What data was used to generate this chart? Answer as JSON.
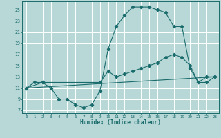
{
  "xlabel": "Humidex (Indice chaleur)",
  "bg_color": "#b8d8d8",
  "grid_color": "#ffffff",
  "line_color": "#1a6b6b",
  "xlim": [
    -0.5,
    23.5
  ],
  "ylim": [
    6.5,
    26.5
  ],
  "xticks": [
    0,
    1,
    2,
    3,
    4,
    5,
    6,
    7,
    8,
    9,
    10,
    11,
    12,
    13,
    14,
    15,
    16,
    17,
    18,
    19,
    20,
    21,
    22,
    23
  ],
  "yticks": [
    7,
    9,
    11,
    13,
    15,
    17,
    19,
    21,
    23,
    25
  ],
  "line1_x": [
    0,
    1,
    2,
    3,
    4,
    5,
    6,
    7,
    8,
    9,
    10,
    11,
    12,
    13,
    14,
    15,
    16,
    17,
    18,
    19,
    20,
    21,
    22,
    23
  ],
  "line1_y": [
    11,
    12,
    12,
    11,
    9,
    9,
    8,
    7.5,
    8,
    10.5,
    18,
    22,
    24,
    25.5,
    25.5,
    25.5,
    25,
    24.5,
    22,
    22,
    14.5,
    12,
    13,
    13
  ],
  "line2_x": [
    0,
    2,
    9,
    10,
    11,
    12,
    13,
    14,
    15,
    16,
    17,
    18,
    19,
    20,
    21,
    22,
    23
  ],
  "line2_y": [
    11,
    12,
    12,
    14,
    13,
    13.5,
    14,
    14.5,
    15,
    15.5,
    16.5,
    17,
    16.5,
    15,
    12,
    12,
    13
  ],
  "line3_x": [
    0,
    23
  ],
  "line3_y": [
    11,
    13
  ],
  "markers1": true,
  "markers2": true,
  "markers3": false
}
